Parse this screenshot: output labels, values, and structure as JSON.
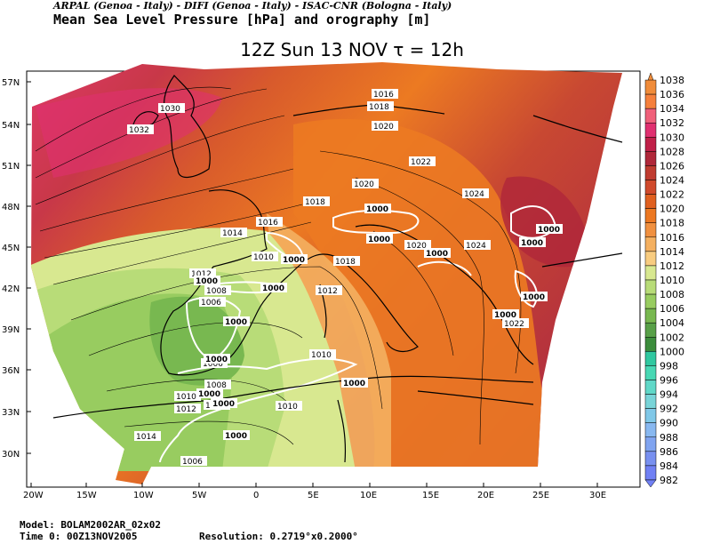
{
  "header": {
    "credits": "ARPAL (Genoa - Italy)  -  DIFI (Genoa - Italy)  -  ISAC-CNR (Bologna - Italy)",
    "product": "Mean Sea Level Pressure [hPa] and orography [m]"
  },
  "map": {
    "title": "12Z Sun 13 NOV   τ = 12h",
    "lon_ticks": [
      "20W",
      "15W",
      "10W",
      "5W",
      "0",
      "5E",
      "10E",
      "15E",
      "20E",
      "25E",
      "30E"
    ],
    "lat_ticks": [
      "57N",
      "54N",
      "51N",
      "48N",
      "45N",
      "42N",
      "39N",
      "36N",
      "33N",
      "30N"
    ],
    "isobar_labels": [
      {
        "text": "1030"
      },
      {
        "text": "1032"
      },
      {
        "text": "1016"
      },
      {
        "text": "1018"
      },
      {
        "text": "1020"
      },
      {
        "text": "1022"
      },
      {
        "text": "1020"
      },
      {
        "text": "1024"
      },
      {
        "text": "1018"
      },
      {
        "text": "1016"
      },
      {
        "text": "1014"
      },
      {
        "text": "1020"
      },
      {
        "text": "1024"
      },
      {
        "text": "1018"
      },
      {
        "text": "1010"
      },
      {
        "text": "1012"
      },
      {
        "text": "1012"
      },
      {
        "text": "1008"
      },
      {
        "text": "1006"
      },
      {
        "text": "1006"
      },
      {
        "text": "1010"
      },
      {
        "text": "1008"
      },
      {
        "text": "1010"
      },
      {
        "text": "1012"
      },
      {
        "text": "1008"
      },
      {
        "text": "1010"
      },
      {
        "text": "1014"
      },
      {
        "text": "1006"
      },
      {
        "text": "1022"
      }
    ],
    "orography_labels": [
      {
        "text": "1000"
      },
      {
        "text": "1000"
      },
      {
        "text": "1000"
      },
      {
        "text": "1000"
      },
      {
        "text": "1000"
      },
      {
        "text": "1000"
      },
      {
        "text": "1000"
      },
      {
        "text": "1000"
      },
      {
        "text": "1000"
      },
      {
        "text": "1000"
      },
      {
        "text": "1000"
      },
      {
        "text": "1000"
      },
      {
        "text": "1000"
      },
      {
        "text": "1000"
      },
      {
        "text": "1000"
      },
      {
        "text": "1000"
      }
    ]
  },
  "colorbar": {
    "levels": [
      "1038",
      "1036",
      "1034",
      "1032",
      "1030",
      "1028",
      "1026",
      "1024",
      "1022",
      "1020",
      "1018",
      "1016",
      "1014",
      "1012",
      "1010",
      "1008",
      "1006",
      "1004",
      "1002",
      "1000",
      "998",
      "996",
      "994",
      "992",
      "990",
      "988",
      "986",
      "984",
      "982"
    ],
    "colors": [
      "#f08c3a",
      "#f5803c",
      "#f0607a",
      "#e03070",
      "#c02048",
      "#b0283a",
      "#c03c30",
      "#d04a2c",
      "#e06020",
      "#ec7822",
      "#f09040",
      "#f4b060",
      "#f8cc80",
      "#d8e890",
      "#b8dc78",
      "#98cc60",
      "#78b850",
      "#58a048",
      "#3c8c3c",
      "#30c8a0",
      "#48d8b4",
      "#60d8c8",
      "#78d4d8",
      "#80c8e8",
      "#88b8f0",
      "#80a4f0",
      "#7890f0",
      "#7080f4"
    ]
  },
  "footer": {
    "model": "Model: BOLAM2002AR_02x02",
    "time": "Time 0: 00Z13NOV2005",
    "resolution": "Resolution: 0.2719°x0.2000°"
  }
}
